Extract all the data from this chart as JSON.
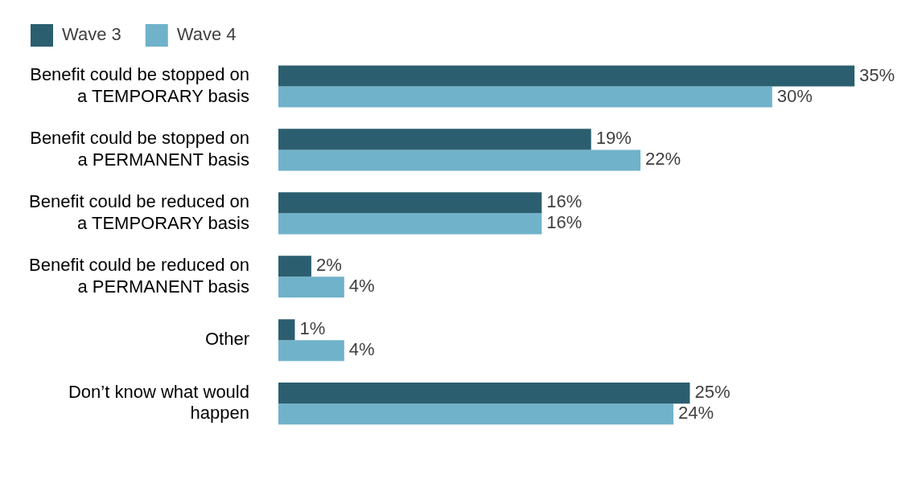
{
  "chart_data": {
    "type": "bar",
    "orientation": "horizontal",
    "categories": [
      "Benefit could be stopped on a TEMPORARY basis",
      "Benefit could be stopped on a PERMANENT basis",
      "Benefit could be reduced on a TEMPORARY basis",
      "Benefit could be reduced on a PERMANENT basis",
      "Other",
      "Don’t know what would happen"
    ],
    "series": [
      {
        "name": "Wave 3",
        "color": "#2b5f70",
        "values": [
          35,
          19,
          16,
          2,
          1,
          25
        ],
        "value_labels": [
          "35%",
          "19%",
          "16%",
          "2%",
          "1%",
          "25%"
        ]
      },
      {
        "name": "Wave 4",
        "color": "#70b2ca",
        "values": [
          30,
          22,
          16,
          4,
          4,
          24
        ],
        "value_labels": [
          "30%",
          "22%",
          "16%",
          "4%",
          "4%",
          "24%"
        ]
      }
    ],
    "legend": "top left",
    "grid": false
  }
}
